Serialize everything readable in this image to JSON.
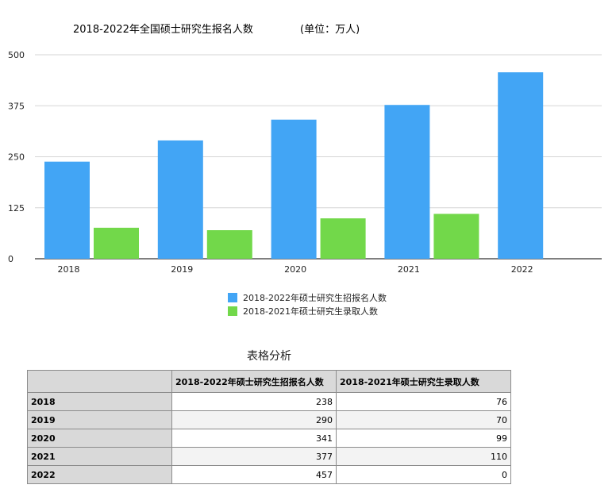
{
  "chart_data": {
    "type": "bar",
    "title": "2018-2022年全国硕士研究生报名人数",
    "unit": "(单位：万人)",
    "categories": [
      "2018",
      "2019",
      "2020",
      "2021",
      "2022"
    ],
    "series": [
      {
        "name": "2018-2022年硕士研究生招报名人数",
        "color": "#42a5f5",
        "values": [
          238,
          290,
          341,
          377,
          457
        ]
      },
      {
        "name": "2018-2021年硕士研究生录取人数",
        "color": "#72d84a",
        "values": [
          76,
          70,
          99,
          110,
          0
        ]
      }
    ],
    "ylim": [
      0,
      500
    ],
    "yticks": [
      0,
      125,
      250,
      375,
      500
    ],
    "grid": true,
    "legend": "bottom"
  },
  "table": {
    "caption": "表格分析",
    "corner": "",
    "headers": [
      "2018-2022年硕士研究生招报名人数",
      "2018-2021年硕士研究生录取人数"
    ],
    "rows": [
      {
        "label": "2018",
        "values": [
          "238",
          "76"
        ]
      },
      {
        "label": "2019",
        "values": [
          "290",
          "70"
        ]
      },
      {
        "label": "2020",
        "values": [
          "341",
          "99"
        ]
      },
      {
        "label": "2021",
        "values": [
          "377",
          "110"
        ]
      },
      {
        "label": "2022",
        "values": [
          "457",
          "0"
        ]
      }
    ]
  }
}
